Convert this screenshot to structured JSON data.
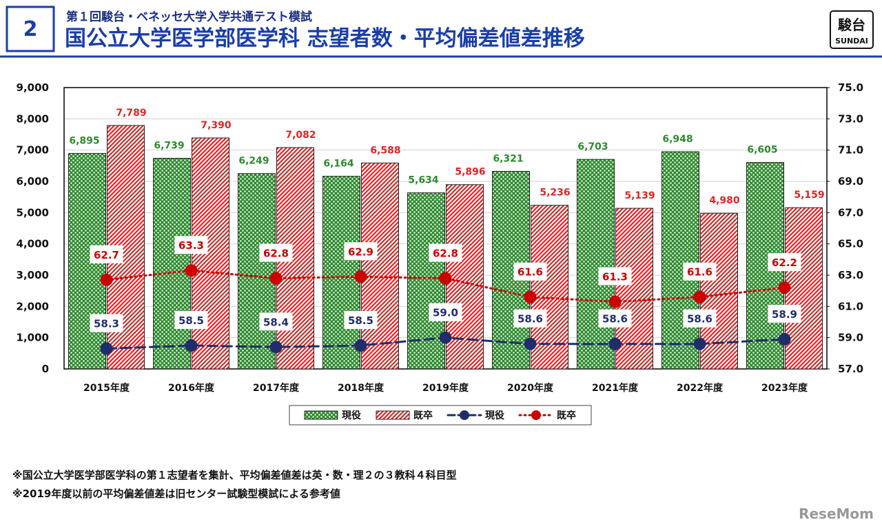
{
  "header": {
    "badge": "2",
    "subtitle": "第１回駿台・ベネッセ大学入学共通テスト模試",
    "title": "国公立大学医学部医学科 志望者数・平均偏差値差推移"
  },
  "logo": {
    "kanji": "駿台",
    "latin": "SUNDAI"
  },
  "notes": [
    "※国公立大学医学部医学科の第１志望者を集計、平均偏差値差は英・数・理２の３教科４科目型",
    "※2019年度以前の平均偏差値差は旧センター試験型模試による参考値"
  ],
  "watermark": "ReseMom",
  "chart_data": {
    "type": "bar",
    "grid": true,
    "legend": "bottom",
    "categories": [
      "2015年度",
      "2016年度",
      "2017年度",
      "2018年度",
      "2019年度",
      "2020年度",
      "2021年度",
      "2022年度",
      "2023年度"
    ],
    "ylim": [
      0,
      9000
    ],
    "yticks": [
      0,
      {
        "value": 1000,
        "label": "1,000"
      },
      {
        "value": 2000,
        "label": "2,000"
      },
      {
        "value": 3000,
        "label": "3,000"
      },
      {
        "value": 4000,
        "label": "4,000"
      },
      {
        "value": 5000,
        "label": "5,000"
      },
      {
        "value": 6000,
        "label": "6,000"
      },
      {
        "value": 7000,
        "label": "7,000"
      },
      {
        "value": 8000,
        "label": "8,000"
      },
      {
        "value": 9000,
        "label": "9,000"
      }
    ],
    "y2lim": [
      57,
      75
    ],
    "y2ticks": [
      {
        "value": 57,
        "label": "57.0"
      },
      {
        "value": 59,
        "label": "59.0"
      },
      {
        "value": 61,
        "label": "61.0"
      },
      {
        "value": 63,
        "label": "63.0"
      },
      {
        "value": 65,
        "label": "65.0"
      },
      {
        "value": 67,
        "label": "67.0"
      },
      {
        "value": 69,
        "label": "69.0"
      },
      {
        "value": 71,
        "label": "71.0"
      },
      {
        "value": 73,
        "label": "73.0"
      },
      {
        "value": 75,
        "label": "75.0"
      }
    ],
    "series": [
      {
        "name": "現役",
        "type": "bar",
        "pattern": "dots",
        "color": "#2e8b2e",
        "values": [
          6895,
          6739,
          6249,
          6164,
          5634,
          6321,
          6703,
          6948,
          6605
        ],
        "value_labels": [
          "6,895",
          "6,739",
          "6,249",
          "6,164",
          "5,634",
          "6,321",
          "6,703",
          "6,948",
          "6,605"
        ]
      },
      {
        "name": "既卒",
        "type": "bar",
        "pattern": "hatch",
        "color": "#e02424",
        "values": [
          7789,
          7390,
          7082,
          6588,
          5896,
          5236,
          5139,
          4980,
          5159
        ],
        "value_labels": [
          "7,789",
          "7,390",
          "7,082",
          "6,588",
          "5,896",
          "5,236",
          "5,139",
          "4,980",
          "5,159"
        ]
      },
      {
        "name": "現役",
        "type": "line",
        "axis": "y2",
        "dash": "dashed",
        "color": "#1f2d6b",
        "values": [
          58.3,
          58.5,
          58.4,
          58.5,
          59.0,
          58.6,
          58.6,
          58.6,
          58.9
        ],
        "value_labels": [
          "58.3",
          "58.5",
          "58.4",
          "58.5",
          "59.0",
          "58.6",
          "58.6",
          "58.6",
          "58.9"
        ]
      },
      {
        "name": "既卒",
        "type": "line",
        "axis": "y2",
        "dash": "dotted",
        "color": "#cc0000",
        "values": [
          62.7,
          63.3,
          62.8,
          62.9,
          62.8,
          61.6,
          61.3,
          61.6,
          62.2
        ],
        "value_labels": [
          "62.7",
          "63.3",
          "62.8",
          "62.9",
          "62.8",
          "61.6",
          "61.3",
          "61.6",
          "62.2"
        ]
      }
    ]
  }
}
